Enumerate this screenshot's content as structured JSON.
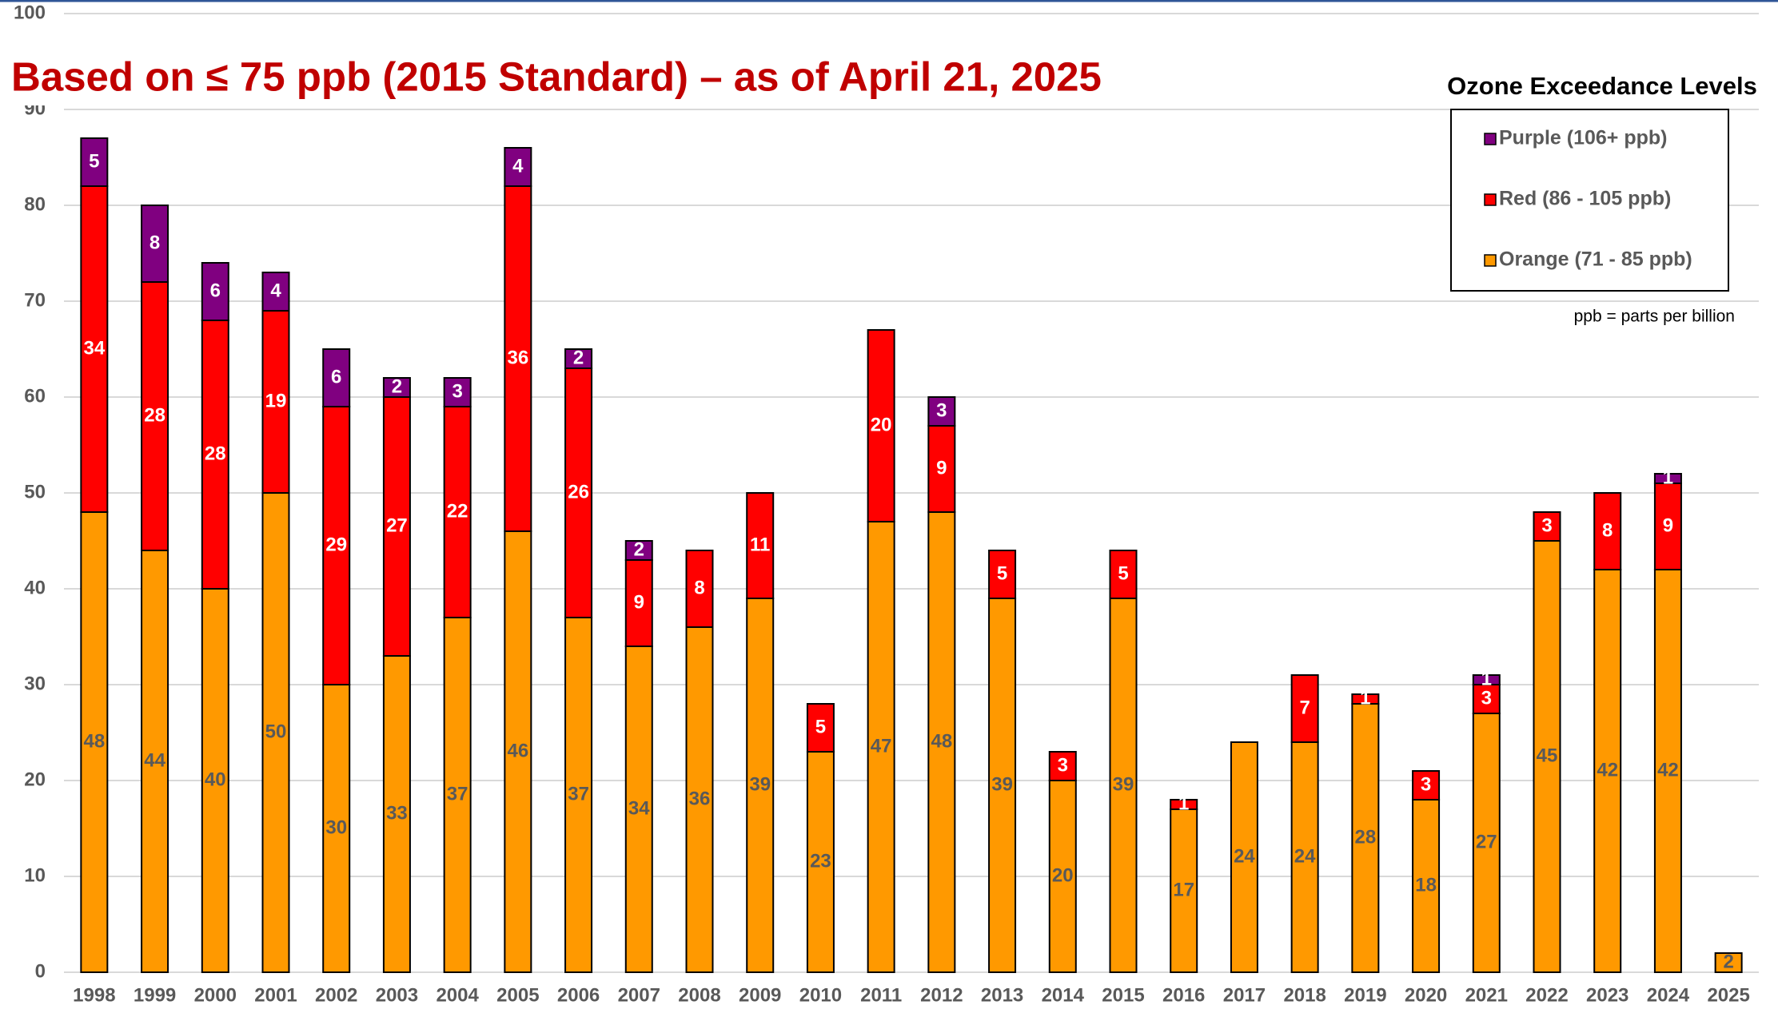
{
  "chart_data": {
    "type": "stacked_bar",
    "title": "Based on ≤ 75 ppb (2015 Standard) – as of April 21, 2025",
    "legend_title": "Ozone Exceedance Levels",
    "annotations": [
      "ppb = parts per billion"
    ],
    "categories": [
      "1998",
      "1999",
      "2000",
      "2001",
      "2002",
      "2003",
      "2004",
      "2005",
      "2006",
      "2007",
      "2008",
      "2009",
      "2010",
      "2011",
      "2012",
      "2013",
      "2014",
      "2015",
      "2016",
      "2017",
      "2018",
      "2019",
      "2020",
      "2021",
      "2022",
      "2023",
      "2024",
      "2025"
    ],
    "series": [
      {
        "name": "Orange (71 - 85 ppb)",
        "color": "#ff9900",
        "label_color": "#595959",
        "values": [
          48,
          44,
          40,
          50,
          30,
          33,
          37,
          46,
          37,
          34,
          36,
          39,
          23,
          47,
          48,
          39,
          20,
          39,
          17,
          24,
          24,
          28,
          18,
          27,
          45,
          42,
          42,
          2
        ]
      },
      {
        "name": "Red (86 - 105 ppb)",
        "color": "#ff0000",
        "label_color": "#ffffff",
        "values": [
          34,
          28,
          28,
          19,
          29,
          27,
          22,
          36,
          26,
          9,
          8,
          11,
          5,
          20,
          9,
          5,
          3,
          5,
          1,
          0,
          7,
          1,
          3,
          3,
          3,
          8,
          9,
          0
        ]
      },
      {
        "name": "Purple (106+ ppb)",
        "color": "#800080",
        "label_color": "#ffffff",
        "values": [
          5,
          8,
          6,
          4,
          6,
          2,
          3,
          4,
          2,
          2,
          0,
          0,
          0,
          0,
          3,
          0,
          0,
          0,
          0,
          0,
          0,
          0,
          0,
          1,
          0,
          0,
          1,
          0
        ]
      }
    ],
    "ylim": [
      0,
      100
    ],
    "yticks": [
      0,
      10,
      20,
      30,
      40,
      50,
      60,
      70,
      80,
      90,
      100
    ],
    "grid": true
  }
}
